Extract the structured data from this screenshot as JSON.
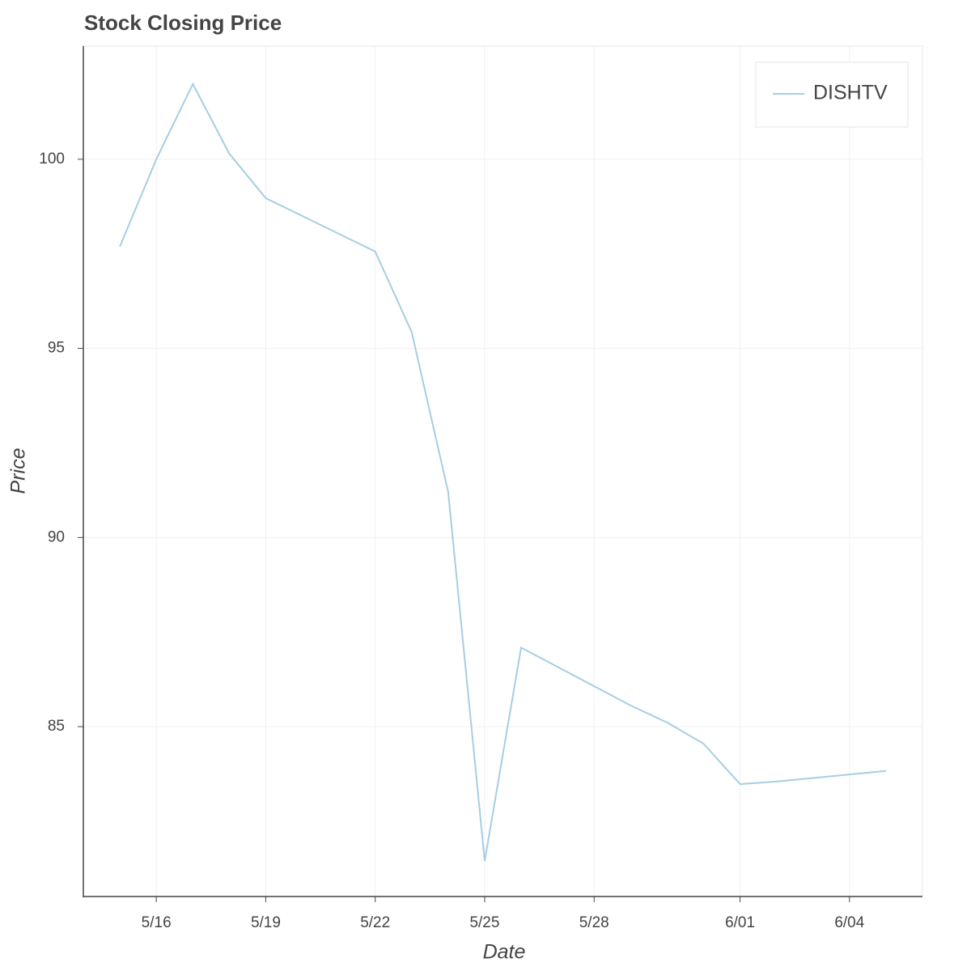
{
  "chart_data": {
    "type": "line",
    "title": "Stock Closing Price",
    "x_label": "Date",
    "y_label": "Price",
    "x": [
      "5/15",
      "5/16",
      "5/17",
      "5/18",
      "5/19",
      "5/22",
      "5/23",
      "5/24",
      "5/25",
      "5/26",
      "5/29",
      "5/30",
      "5/31",
      "6/01",
      "6/02",
      "6/05"
    ],
    "series": [
      {
        "name": "DISHTV",
        "color": "#a6cee3",
        "values": [
          97.69,
          100.0,
          101.99,
          100.15,
          98.97,
          97.56,
          95.43,
          91.2,
          81.45,
          87.09,
          85.56,
          85.11,
          84.55,
          83.48,
          83.55,
          83.83
        ]
      }
    ],
    "xlim": [
      "5/14",
      "6/06"
    ],
    "xticks": [
      "5/16",
      "5/19",
      "5/22",
      "5/25",
      "5/28",
      "6/01",
      "6/04"
    ],
    "ylim": [
      80.51,
      102.99
    ],
    "yticks": [
      85,
      90,
      95,
      100
    ],
    "grid": true,
    "legend_position": "top-right"
  }
}
